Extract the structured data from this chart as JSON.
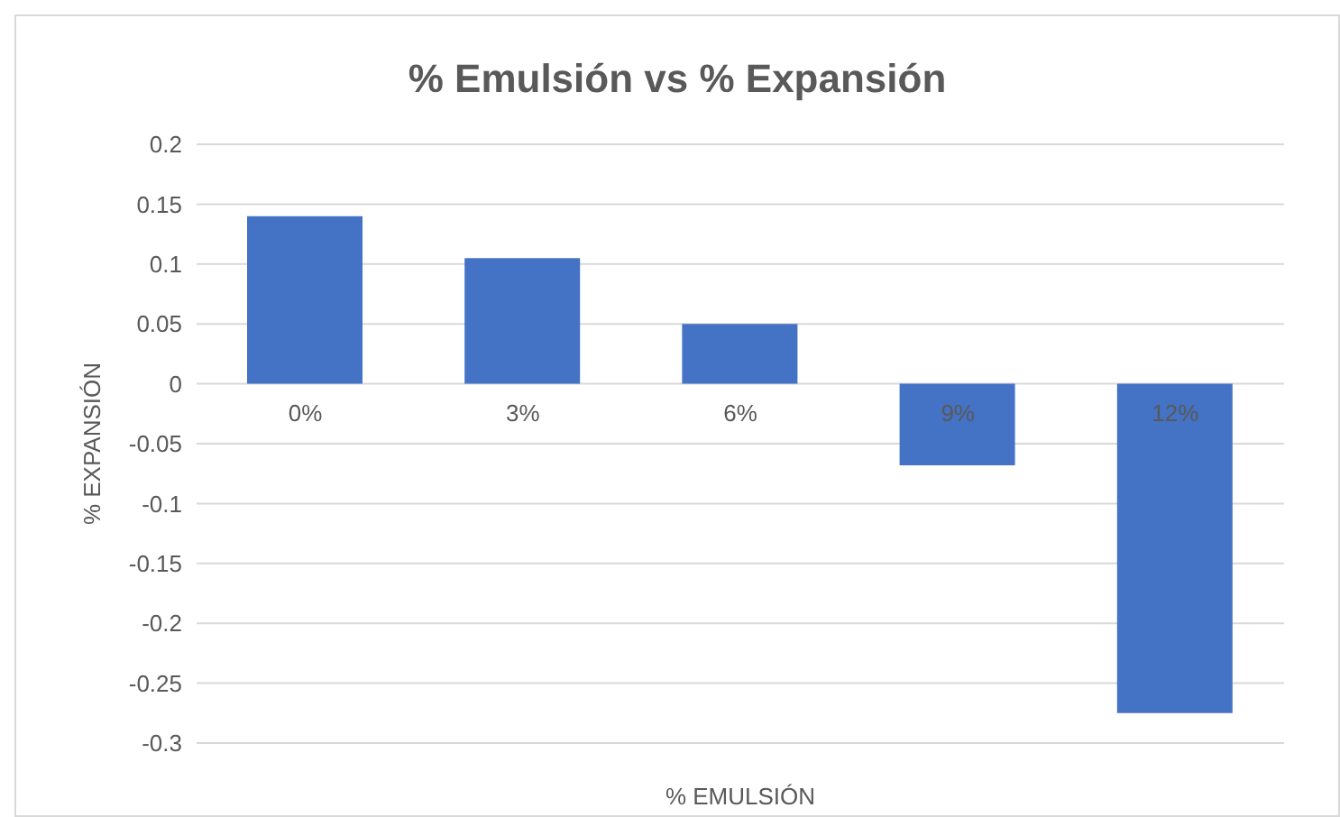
{
  "chart_data": {
    "type": "bar",
    "title": "% Emulsión vs % Expansión",
    "xlabel": "% EMULSIÓN",
    "ylabel": "% EXPANSIÓN",
    "categories": [
      "0%",
      "3%",
      "6%",
      "9%",
      "12%"
    ],
    "values": [
      0.14,
      0.105,
      0.05,
      -0.068,
      -0.275
    ],
    "color": "#4472c4",
    "ylim": [
      -0.3,
      0.2
    ],
    "yticks": [
      -0.3,
      -0.25,
      -0.2,
      -0.15,
      -0.1,
      -0.05,
      0,
      0.05,
      0.1,
      0.15,
      0.2
    ],
    "grid": "y"
  }
}
